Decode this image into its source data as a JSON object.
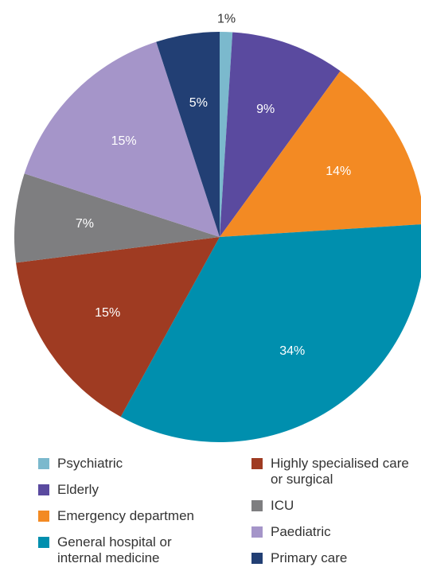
{
  "chart_data": {
    "type": "pie",
    "categories": [
      "Psychiatric",
      "Elderly",
      "Emergency departmen",
      "General hospital or internal medicine",
      "Highly specialised care or surgical",
      "ICU",
      "Paediatric",
      "Primary care"
    ],
    "values": [
      1,
      9,
      14,
      34,
      15,
      7,
      15,
      5
    ],
    "value_labels": [
      "1%",
      "9%",
      "14%",
      "34%",
      "15%",
      "7%",
      "15%",
      "5%"
    ],
    "colors": [
      "#7bb9cd",
      "#5a4a9f",
      "#f38a23",
      "#008fae",
      "#9f3b22",
      "#7e7e80",
      "#a595c9",
      "#223f74"
    ]
  }
}
